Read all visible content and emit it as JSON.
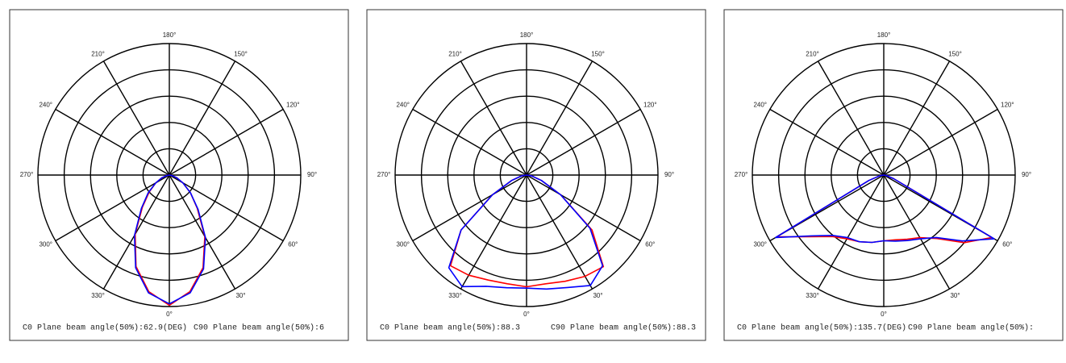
{
  "chart_data": [
    {
      "type": "polar",
      "theta": [
        270,
        280,
        290,
        300,
        310,
        320,
        330,
        340,
        350,
        0,
        10,
        20,
        30,
        40,
        50,
        60,
        70,
        80,
        90
      ],
      "rlim": [
        0,
        100
      ],
      "rgrid": [
        20,
        40,
        60,
        80,
        100
      ],
      "thetaticks": [
        {
          "value": 0,
          "label": "0°"
        },
        {
          "value": 30,
          "label": "30°"
        },
        {
          "value": 60,
          "label": "60°"
        },
        {
          "value": 90,
          "label": "90°"
        },
        {
          "value": 120,
          "label": "120°"
        },
        {
          "value": 150,
          "label": "150°"
        },
        {
          "value": 180,
          "label": "180°"
        },
        {
          "value": 210,
          "label": "210°"
        },
        {
          "value": 240,
          "label": "240°"
        },
        {
          "value": 270,
          "label": "270°"
        },
        {
          "value": 300,
          "label": "300°"
        },
        {
          "value": 330,
          "label": "330°"
        }
      ],
      "series": [
        {
          "color": "#ff0000",
          "values": [
            0,
            2,
            6,
            12,
            20,
            32,
            52,
            74,
            90,
            99,
            90,
            75,
            54,
            33,
            21,
            12,
            6,
            2,
            0
          ]
        },
        {
          "color": "#0000ff",
          "values": [
            0,
            2,
            6,
            12,
            21,
            33,
            53,
            75,
            91,
            98,
            91,
            76,
            55,
            34,
            21,
            12,
            6,
            2,
            0
          ]
        }
      ],
      "annotations": [
        "C0 Plane beam angle(50%):62.9(DEG)",
        "C90 Plane beam angle(50%):6"
      ]
    },
    {
      "type": "polar",
      "theta": [
        270,
        280,
        290,
        300,
        310,
        320,
        330,
        340,
        350,
        0,
        10,
        20,
        30,
        40,
        50,
        60,
        70,
        80,
        90
      ],
      "rlim": [
        0,
        100
      ],
      "rgrid": [
        20,
        40,
        60,
        80,
        100
      ],
      "thetaticks": [
        {
          "value": 0,
          "label": "0°"
        },
        {
          "value": 30,
          "label": "30°"
        },
        {
          "value": 60,
          "label": "60°"
        },
        {
          "value": 90,
          "label": "90°"
        },
        {
          "value": 120,
          "label": "120°"
        },
        {
          "value": 150,
          "label": "150°"
        },
        {
          "value": 180,
          "label": "180°"
        },
        {
          "value": 210,
          "label": "210°"
        },
        {
          "value": 240,
          "label": "240°"
        },
        {
          "value": 270,
          "label": "270°"
        },
        {
          "value": 300,
          "label": "300°"
        },
        {
          "value": 330,
          "label": "330°"
        }
      ],
      "series": [
        {
          "color": "#ff0000",
          "values": [
            0,
            4,
            12,
            30,
            65,
            90,
            88,
            85,
            84,
            85,
            84,
            86,
            89,
            91,
            65,
            30,
            12,
            4,
            0
          ]
        },
        {
          "color": "#0000ff",
          "values": [
            0,
            4,
            12,
            30,
            65,
            92,
            98,
            90,
            87,
            86,
            88,
            91,
            97,
            90,
            63,
            30,
            12,
            4,
            0
          ]
        }
      ],
      "annotations": [
        "C0 Plane beam angle(50%):88.3",
        "C90 Plane beam angle(50%):88.3"
      ]
    },
    {
      "type": "polar",
      "theta": [
        270,
        280,
        290,
        300,
        310,
        320,
        330,
        340,
        350,
        0,
        10,
        20,
        30,
        40,
        50,
        60,
        70,
        80,
        90
      ],
      "rlim": [
        0,
        100
      ],
      "rgrid": [
        20,
        40,
        60,
        80,
        100
      ],
      "thetaticks": [
        {
          "value": 0,
          "label": "0°"
        },
        {
          "value": 30,
          "label": "30°"
        },
        {
          "value": 60,
          "label": "60°"
        },
        {
          "value": 90,
          "label": "90°"
        },
        {
          "value": 120,
          "label": "120°"
        },
        {
          "value": 150,
          "label": "150°"
        },
        {
          "value": 180,
          "label": "180°"
        },
        {
          "value": 210,
          "label": "210°"
        },
        {
          "value": 240,
          "label": "240°"
        },
        {
          "value": 270,
          "label": "270°"
        },
        {
          "value": 300,
          "label": "300°"
        },
        {
          "value": 330,
          "label": "330°"
        }
      ],
      "series": [
        {
          "color": "#ff0000",
          "values": [
            0,
            3,
            12,
            94,
            73,
            61,
            56,
            54,
            52,
            50,
            50,
            52,
            55,
            63,
            80,
            95,
            8,
            2,
            0
          ]
        },
        {
          "color": "#0000ff",
          "values": [
            0,
            3,
            12,
            95,
            72,
            60,
            55,
            54,
            52,
            50,
            51,
            53,
            56,
            62,
            78,
            97,
            8,
            2,
            0
          ]
        }
      ],
      "annotations": [
        "C0 Plane beam angle(50%):135.7(DEG)",
        "C90 Plane beam angle(50%):"
      ]
    }
  ]
}
